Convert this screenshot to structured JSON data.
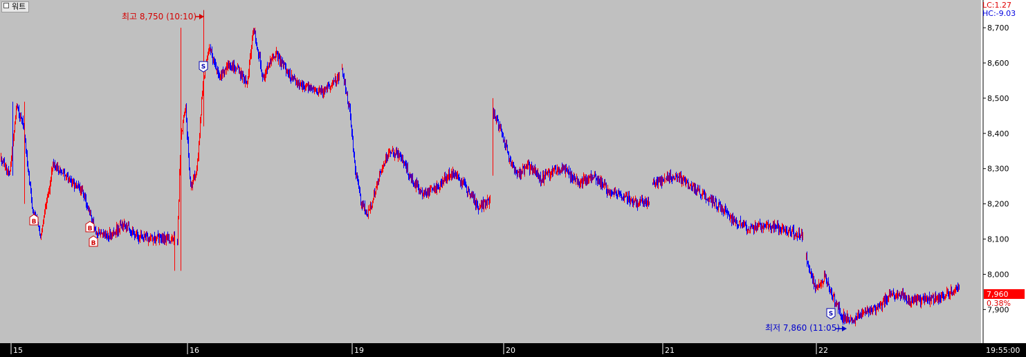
{
  "window_title": "워트",
  "indicators": {
    "lc": "LC:1.27",
    "hc": "HC:-9.03"
  },
  "current": {
    "price": "7,960",
    "change": "0.38%"
  },
  "clock": "19:55:00",
  "colors": {
    "up": "#ff0000",
    "down": "#0000ff",
    "plot_bg": "#c0c0c0",
    "high_label": "#d40000",
    "low_label": "#0000cc"
  },
  "chart_data": {
    "type": "candlestick",
    "title": "",
    "xlabel": "",
    "ylabel": "",
    "ylim": [
      7830,
      8765
    ],
    "y_ticks": [
      8700,
      8600,
      8500,
      8400,
      8300,
      8200,
      8100,
      8000,
      7900
    ],
    "y_tick_labels": [
      "8,700",
      "8,600",
      "8,500",
      "8,400",
      "8,300",
      "8,200",
      "8,100",
      "8,000",
      "7,900"
    ],
    "x_ticks": [
      "15",
      "16",
      "19",
      "20",
      "21",
      "22"
    ],
    "grid": false,
    "annotations": {
      "high": {
        "text": "최고 8,750 (10:10)",
        "value": 8750
      },
      "low": {
        "text": "최저 7,860 (11:05)",
        "value": 7860
      }
    },
    "signals": [
      {
        "type": "B",
        "day": "15"
      },
      {
        "type": "B",
        "day": "15"
      },
      {
        "type": "B",
        "day": "15"
      },
      {
        "type": "S",
        "day": "16"
      },
      {
        "type": "S",
        "day": "22"
      }
    ],
    "days": [
      {
        "label": "15",
        "open": 8330,
        "path": [
          [
            0,
            8330
          ],
          [
            0.05,
            8280
          ],
          [
            0.09,
            8480
          ],
          [
            0.13,
            8420
          ],
          [
            0.18,
            8190
          ],
          [
            0.23,
            8110
          ],
          [
            0.3,
            8310
          ],
          [
            0.38,
            8280
          ],
          [
            0.47,
            8230
          ],
          [
            0.55,
            8120
          ],
          [
            0.63,
            8110
          ],
          [
            0.7,
            8140
          ],
          [
            0.8,
            8105
          ],
          [
            1,
            8100
          ]
        ]
      },
      {
        "label": "16",
        "open": 8090,
        "path": [
          [
            0,
            8090
          ],
          [
            0.02,
            8380
          ],
          [
            0.05,
            8480
          ],
          [
            0.08,
            8250
          ],
          [
            0.12,
            8290
          ],
          [
            0.16,
            8560
          ],
          [
            0.2,
            8640
          ],
          [
            0.26,
            8560
          ],
          [
            0.32,
            8600
          ],
          [
            0.38,
            8580
          ],
          [
            0.43,
            8530
          ],
          [
            0.47,
            8700
          ],
          [
            0.53,
            8560
          ],
          [
            0.6,
            8630
          ],
          [
            0.7,
            8560
          ],
          [
            0.8,
            8530
          ],
          [
            0.9,
            8520
          ],
          [
            1,
            8560
          ]
        ]
      },
      {
        "label": "19",
        "open": 8580,
        "path": [
          [
            0,
            8580
          ],
          [
            0.05,
            8470
          ],
          [
            0.09,
            8300
          ],
          [
            0.13,
            8200
          ],
          [
            0.18,
            8170
          ],
          [
            0.25,
            8280
          ],
          [
            0.32,
            8350
          ],
          [
            0.4,
            8330
          ],
          [
            0.48,
            8260
          ],
          [
            0.56,
            8230
          ],
          [
            0.65,
            8250
          ],
          [
            0.74,
            8290
          ],
          [
            0.83,
            8250
          ],
          [
            0.92,
            8190
          ],
          [
            1,
            8210
          ]
        ]
      },
      {
        "label": "20",
        "open": 8460,
        "path": [
          [
            0,
            8460
          ],
          [
            0.05,
            8400
          ],
          [
            0.1,
            8330
          ],
          [
            0.15,
            8280
          ],
          [
            0.22,
            8310
          ],
          [
            0.3,
            8270
          ],
          [
            0.38,
            8290
          ],
          [
            0.45,
            8300
          ],
          [
            0.55,
            8260
          ],
          [
            0.65,
            8280
          ],
          [
            0.75,
            8230
          ],
          [
            0.85,
            8220
          ],
          [
            0.93,
            8200
          ],
          [
            1,
            8210
          ]
        ]
      },
      {
        "label": "21",
        "open": 8260,
        "path": [
          [
            0,
            8260
          ],
          [
            0.08,
            8270
          ],
          [
            0.16,
            8280
          ],
          [
            0.26,
            8250
          ],
          [
            0.36,
            8220
          ],
          [
            0.45,
            8190
          ],
          [
            0.55,
            8150
          ],
          [
            0.65,
            8130
          ],
          [
            0.75,
            8140
          ],
          [
            0.85,
            8130
          ],
          [
            0.93,
            8120
          ],
          [
            1,
            8110
          ]
        ]
      },
      {
        "label": "22",
        "open": 8050,
        "path": [
          [
            0,
            8050
          ],
          [
            0.06,
            7960
          ],
          [
            0.12,
            7990
          ],
          [
            0.18,
            7930
          ],
          [
            0.24,
            7880
          ],
          [
            0.3,
            7870
          ],
          [
            0.38,
            7890
          ],
          [
            0.46,
            7900
          ],
          [
            0.54,
            7940
          ],
          [
            0.62,
            7940
          ],
          [
            0.7,
            7920
          ],
          [
            0.78,
            7930
          ],
          [
            0.86,
            7930
          ],
          [
            0.95,
            7950
          ],
          [
            1,
            7960
          ]
        ]
      }
    ]
  }
}
